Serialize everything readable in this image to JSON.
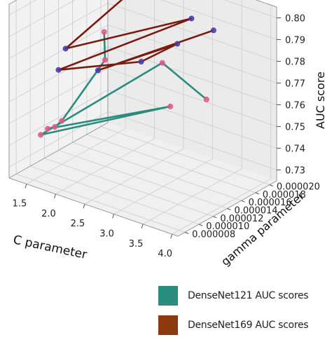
{
  "chart_data": {
    "type": "scatter",
    "projection": "3d",
    "grid": true,
    "xlabel": "C parameter",
    "ylabel": "gamma parameter",
    "zlabel": "AUC score",
    "xlim": [
      1.2,
      4.1
    ],
    "ylim": [
      7e-06,
      2.1e-05
    ],
    "zlim": [
      0.725,
      0.805
    ],
    "x_ticks": [
      "1.5",
      "2.0",
      "2.5",
      "3.0",
      "3.5",
      "4.0"
    ],
    "y_ticks": [
      "0.000008",
      "0.000010",
      "0.000012",
      "0.000014",
      "0.000016",
      "0.000018",
      "0.000020"
    ],
    "z_ticks": [
      "0.73",
      "0.74",
      "0.75",
      "0.76",
      "0.77",
      "0.78",
      "0.79",
      "0.80"
    ],
    "series": [
      {
        "name": "DenseNet121 AUC scores",
        "color": "#2a8c7e",
        "marker_color": "#e05a88",
        "points": [
          {
            "C": 1.5,
            "gamma": 1.8e-05,
            "auc": 0.775
          },
          {
            "C": 2.0,
            "gamma": 1.4e-05,
            "auc": 0.774
          },
          {
            "C": 1.5,
            "gamma": 1.2e-05,
            "auc": 0.745
          },
          {
            "C": 1.5,
            "gamma": 1.1e-05,
            "auc": 0.744
          },
          {
            "C": 1.5,
            "gamma": 1e-05,
            "auc": 0.745
          },
          {
            "C": 3.0,
            "gamma": 1.5e-05,
            "auc": 0.76
          },
          {
            "C": 1.5,
            "gamma": 9e-06,
            "auc": 0.744
          },
          {
            "C": 2.5,
            "gamma": 1.8e-05,
            "auc": 0.77
          },
          {
            "C": 3.5,
            "gamma": 1.6e-05,
            "auc": 0.766
          }
        ]
      },
      {
        "name": "DenseNet169 AUC scores",
        "color": "#7a1a10",
        "marker_color": "#4d3aa3",
        "points": [
          {
            "C": 1.2,
            "gamma": 2e-05,
            "auc": 0.793
          },
          {
            "C": 2.0,
            "gamma": 1.9e-05,
            "auc": 0.8
          },
          {
            "C": 1.2,
            "gamma": 1.5e-05,
            "auc": 0.77
          },
          {
            "C": 3.0,
            "gamma": 1.8e-05,
            "auc": 0.795
          },
          {
            "C": 1.2,
            "gamma": 1.4e-05,
            "auc": 0.762
          },
          {
            "C": 2.5,
            "gamma": 1.5e-05,
            "auc": 0.776
          },
          {
            "C": 3.0,
            "gamma": 1.6e-05,
            "auc": 0.787
          },
          {
            "C": 2.0,
            "gamma": 1.3e-05,
            "auc": 0.771
          },
          {
            "C": 3.5,
            "gamma": 1.7e-05,
            "auc": 0.796
          }
        ]
      }
    ]
  }
}
